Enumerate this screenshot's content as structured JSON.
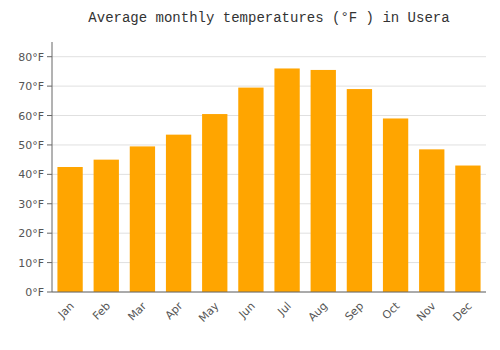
{
  "chart_data": {
    "type": "bar",
    "title": "Average monthly temperatures (°F ) in Usera",
    "categories": [
      "Jan",
      "Feb",
      "Mar",
      "Apr",
      "May",
      "Jun",
      "Jul",
      "Aug",
      "Sep",
      "Oct",
      "Nov",
      "Dec"
    ],
    "values": [
      42.5,
      45.0,
      49.5,
      53.5,
      60.5,
      69.5,
      76.0,
      75.5,
      69.0,
      59.0,
      48.5,
      43.0
    ],
    "color": "#FFA500",
    "ylim": [
      0,
      85
    ],
    "yticks": [
      {
        "value": 0,
        "label": "0°F"
      },
      {
        "value": 10,
        "label": "10°F"
      },
      {
        "value": 20,
        "label": "20°F"
      },
      {
        "value": 30,
        "label": "30°F"
      },
      {
        "value": 40,
        "label": "40°F"
      },
      {
        "value": 50,
        "label": "50°F"
      },
      {
        "value": 60,
        "label": "60°F"
      },
      {
        "value": 70,
        "label": "70°F"
      },
      {
        "value": 80,
        "label": "80°F"
      }
    ],
    "grid": true
  }
}
